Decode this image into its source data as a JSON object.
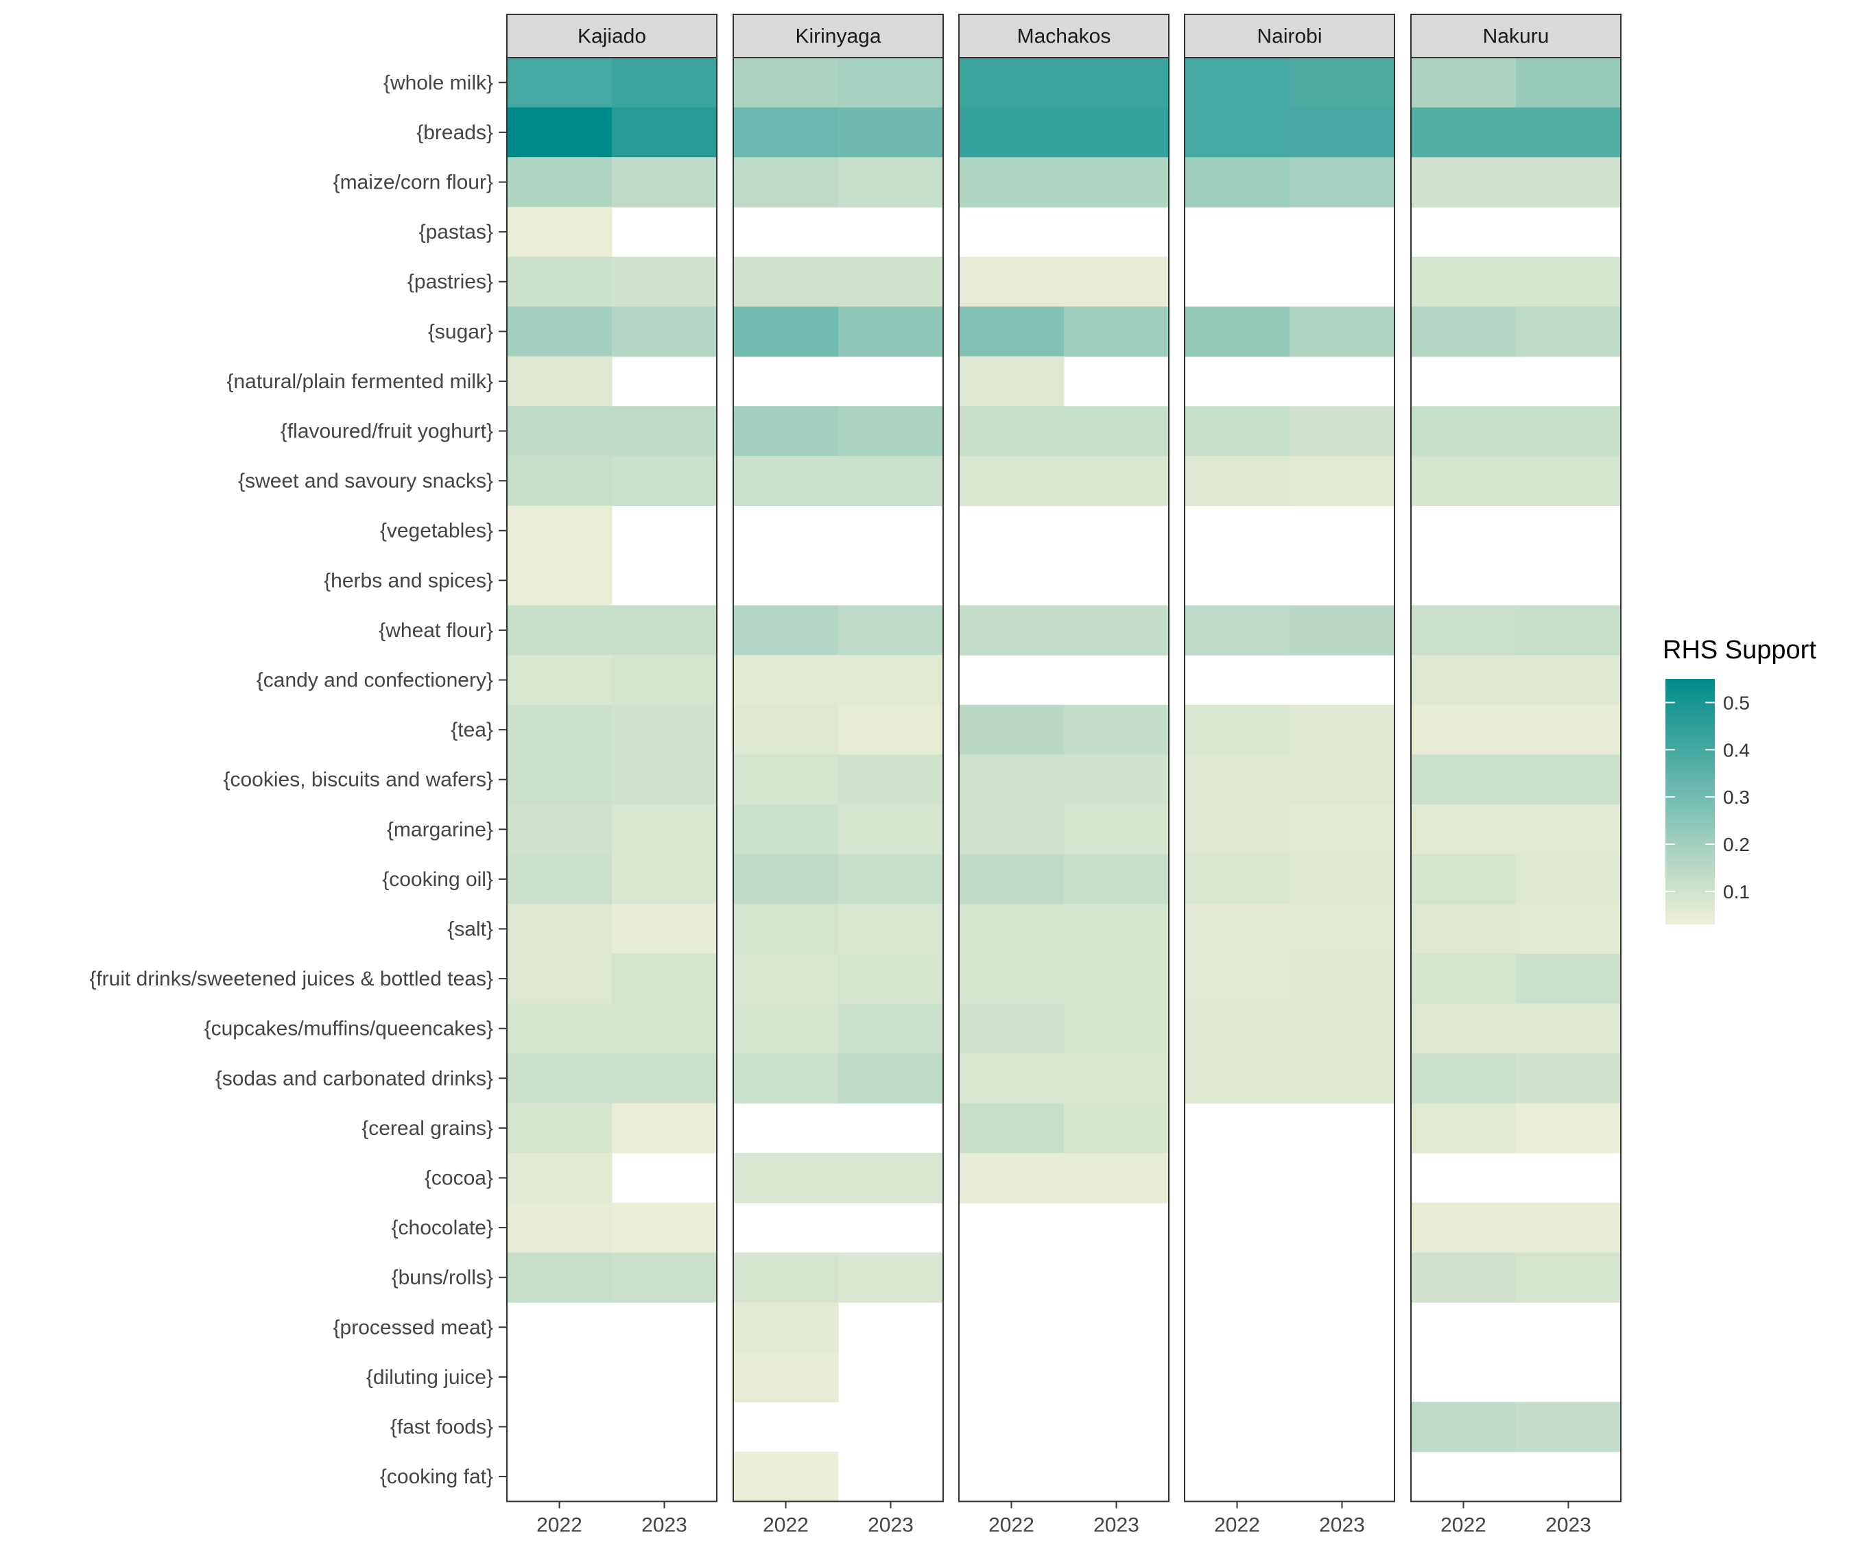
{
  "chart_data": {
    "type": "heatmap",
    "title": "",
    "xlabel": "",
    "ylabel": "",
    "legend": {
      "title": "RHS Support",
      "ticks": [
        0.1,
        0.2,
        0.3,
        0.4,
        0.5
      ],
      "tick_labels": [
        "0.1",
        "0.2",
        "0.3",
        "0.4",
        "0.5"
      ],
      "range": [
        0.03,
        0.55
      ],
      "colors": {
        "low": "#f0f0d8",
        "high": "#008b8b"
      },
      "placement": "right"
    },
    "x_categories": [
      "2022",
      "2023"
    ],
    "rows": [
      "{whole milk}",
      "{breads}",
      "{maize/corn flour}",
      "{pastas}",
      "{pastries}",
      "{sugar}",
      "{natural/plain fermented milk}",
      "{flavoured/fruit yoghurt}",
      "{sweet and savoury snacks}",
      "{vegetables}",
      "{herbs and spices}",
      "{wheat flour}",
      "{candy and confectionery}",
      "{tea}",
      "{cookies, biscuits and wafers}",
      "{margarine}",
      "{cooking oil}",
      "{salt}",
      "{fruit drinks/sweetened juices & bottled teas}",
      "{cupcakes/muffins/queencakes}",
      "{sodas and carbonated drinks}",
      "{cereal grains}",
      "{cocoa}",
      "{chocolate}",
      "{buns/rolls}",
      "{processed meat}",
      "{diluting juice}",
      "{fast foods}",
      "{cooking fat}"
    ],
    "panels": [
      {
        "name": "Kajiado",
        "values": [
          [
            0.4,
            0.42
          ],
          [
            0.55,
            0.47
          ],
          [
            0.17,
            0.14
          ],
          [
            0.04,
            null
          ],
          [
            0.11,
            0.1
          ],
          [
            0.2,
            0.16
          ],
          [
            0.07,
            null
          ],
          [
            0.14,
            0.14
          ],
          [
            0.12,
            0.11
          ],
          [
            0.04,
            null
          ],
          [
            0.04,
            null
          ],
          [
            0.12,
            0.12
          ],
          [
            0.08,
            0.09
          ],
          [
            0.11,
            0.1
          ],
          [
            0.11,
            0.1
          ],
          [
            0.1,
            0.08
          ],
          [
            0.11,
            0.08
          ],
          [
            0.07,
            0.05
          ],
          [
            0.07,
            0.09
          ],
          [
            0.09,
            0.09
          ],
          [
            0.11,
            0.11
          ],
          [
            0.09,
            0.04
          ],
          [
            0.06,
            null
          ],
          [
            0.05,
            0.04
          ],
          [
            0.12,
            0.11
          ],
          [
            null,
            null
          ],
          [
            null,
            null
          ],
          [
            null,
            null
          ],
          [
            null,
            null
          ]
        ]
      },
      {
        "name": "Kirinyaga",
        "values": [
          [
            0.18,
            0.19
          ],
          [
            0.32,
            0.31
          ],
          [
            0.14,
            0.12
          ],
          [
            null,
            null
          ],
          [
            0.1,
            0.1
          ],
          [
            0.3,
            0.24
          ],
          [
            null,
            null
          ],
          [
            0.2,
            0.18
          ],
          [
            0.11,
            0.11
          ],
          [
            null,
            null
          ],
          [
            null,
            null
          ],
          [
            0.16,
            0.14
          ],
          [
            0.06,
            0.06
          ],
          [
            0.07,
            0.05
          ],
          [
            0.09,
            0.1
          ],
          [
            0.11,
            0.09
          ],
          [
            0.14,
            0.12
          ],
          [
            0.09,
            0.08
          ],
          [
            0.08,
            0.09
          ],
          [
            0.09,
            0.11
          ],
          [
            0.11,
            0.14
          ],
          [
            null,
            null
          ],
          [
            0.08,
            0.08
          ],
          [
            null,
            null
          ],
          [
            0.09,
            0.08
          ],
          [
            0.06,
            null
          ],
          [
            0.05,
            null
          ],
          [
            null,
            null
          ],
          [
            0.04,
            null
          ]
        ]
      },
      {
        "name": "Machakos",
        "values": [
          [
            0.42,
            0.42
          ],
          [
            0.43,
            0.43
          ],
          [
            0.17,
            0.17
          ],
          [
            null,
            null
          ],
          [
            0.05,
            0.05
          ],
          [
            0.27,
            0.21
          ],
          [
            0.07,
            null
          ],
          [
            0.12,
            0.12
          ],
          [
            0.08,
            0.08
          ],
          [
            null,
            null
          ],
          [
            null,
            null
          ],
          [
            0.13,
            0.13
          ],
          [
            null,
            null
          ],
          [
            0.15,
            0.13
          ],
          [
            0.1,
            0.1
          ],
          [
            0.1,
            0.09
          ],
          [
            0.14,
            0.12
          ],
          [
            0.09,
            0.09
          ],
          [
            0.09,
            0.09
          ],
          [
            0.1,
            0.09
          ],
          [
            0.08,
            0.08
          ],
          [
            0.12,
            0.09
          ],
          [
            0.05,
            0.05
          ],
          [
            null,
            null
          ],
          [
            null,
            null
          ],
          [
            null,
            null
          ],
          [
            null,
            null
          ],
          [
            null,
            null
          ],
          [
            null,
            null
          ]
        ]
      },
      {
        "name": "Nairobi",
        "values": [
          [
            0.4,
            0.38
          ],
          [
            0.4,
            0.39
          ],
          [
            0.21,
            0.19
          ],
          [
            null,
            null
          ],
          [
            null,
            null
          ],
          [
            0.23,
            0.17
          ],
          [
            null,
            null
          ],
          [
            0.12,
            0.1
          ],
          [
            0.07,
            0.06
          ],
          [
            null,
            null
          ],
          [
            null,
            null
          ],
          [
            0.14,
            0.15
          ],
          [
            null,
            null
          ],
          [
            0.08,
            0.07
          ],
          [
            0.07,
            0.07
          ],
          [
            0.07,
            0.06
          ],
          [
            0.08,
            0.07
          ],
          [
            0.06,
            0.06
          ],
          [
            0.06,
            0.07
          ],
          [
            0.07,
            0.07
          ],
          [
            0.07,
            0.07
          ],
          [
            null,
            null
          ],
          [
            null,
            null
          ],
          [
            null,
            null
          ],
          [
            null,
            null
          ],
          [
            null,
            null
          ],
          [
            null,
            null
          ],
          [
            null,
            null
          ],
          [
            null,
            null
          ]
        ]
      },
      {
        "name": "Nakuru",
        "values": [
          [
            0.18,
            0.22
          ],
          [
            0.37,
            0.37
          ],
          [
            0.1,
            0.1
          ],
          [
            null,
            null
          ],
          [
            0.09,
            0.09
          ],
          [
            0.16,
            0.14
          ],
          [
            null,
            null
          ],
          [
            0.12,
            0.12
          ],
          [
            0.09,
            0.09
          ],
          [
            null,
            null
          ],
          [
            null,
            null
          ],
          [
            0.11,
            0.12
          ],
          [
            0.07,
            0.07
          ],
          [
            0.05,
            0.05
          ],
          [
            0.11,
            0.11
          ],
          [
            0.06,
            0.06
          ],
          [
            0.09,
            0.07
          ],
          [
            0.07,
            0.06
          ],
          [
            0.09,
            0.11
          ],
          [
            0.07,
            0.07
          ],
          [
            0.11,
            0.1
          ],
          [
            0.06,
            0.04
          ],
          [
            null,
            null
          ],
          [
            0.05,
            0.05
          ],
          [
            0.1,
            0.09
          ],
          [
            null,
            null
          ],
          [
            null,
            null
          ],
          [
            0.14,
            0.13
          ],
          [
            null,
            null
          ]
        ]
      }
    ]
  }
}
